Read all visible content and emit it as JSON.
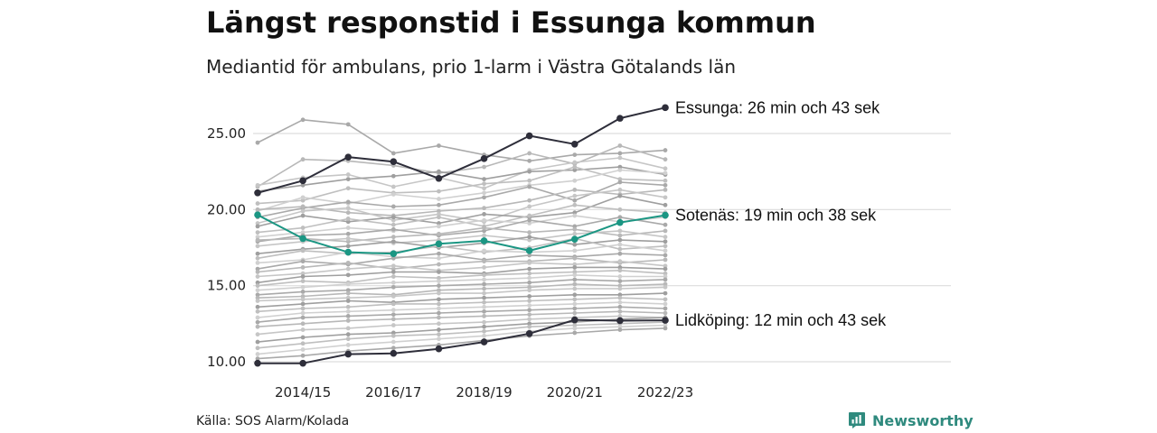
{
  "header": {
    "title": "Längst responstid i Essunga kommun",
    "subtitle": "Mediantid för ambulans, prio 1-larm i Västra Götalands län"
  },
  "footer": {
    "source": "Källa: SOS Alarm/Kolada",
    "brand": "Newsworthy"
  },
  "colors": {
    "highlight_dark": "#2e2e3a",
    "highlight_teal": "#1b9683",
    "background_series": "#b3b3b3",
    "grid": "#dddddd",
    "brand": "#2f8a7e"
  },
  "chart_data": {
    "type": "line",
    "x": [
      "2013/14",
      "2014/15",
      "2015/16",
      "2016/17",
      "2017/18",
      "2018/19",
      "2019/20",
      "2020/21",
      "2021/22",
      "2022/23"
    ],
    "x_tick_labels": [
      "2014/15",
      "2016/17",
      "2018/19",
      "2020/21",
      "2022/23"
    ],
    "y_ticks": [
      "10.00",
      "15.00",
      "20.00",
      "25.00"
    ],
    "ylim": [
      9.5,
      27.2
    ],
    "grid": true,
    "highlighted": [
      {
        "name": "Essunga",
        "label": "Essunga: 26 min och 43 sek",
        "color": "#2e2e3a",
        "values": [
          21.1,
          21.9,
          23.45,
          23.15,
          22.05,
          23.35,
          24.85,
          24.3,
          26.0,
          26.7
        ]
      },
      {
        "name": "Sotenäs",
        "label": "Sotenäs: 19 min och 38 sek",
        "color": "#1b9683",
        "values": [
          19.65,
          18.1,
          17.2,
          17.1,
          17.75,
          17.95,
          17.3,
          18.05,
          19.15,
          19.63
        ]
      },
      {
        "name": "Lidköping",
        "label": "Lidköping: 12 min och 43 sek",
        "color": "#2e2e3a",
        "values": [
          9.9,
          9.9,
          10.5,
          10.55,
          10.85,
          11.3,
          11.85,
          12.75,
          12.7,
          12.72
        ]
      }
    ],
    "background_series": [
      [
        24.4,
        25.9,
        25.6,
        23.7,
        24.2,
        23.6,
        23.2,
        23.6,
        23.7,
        23.9
      ],
      [
        21.5,
        23.3,
        23.2,
        22.9,
        22.4,
        22.8,
        23.7,
        23.0,
        24.2,
        23.3
      ],
      [
        21.6,
        22.1,
        22.3,
        21.5,
        22.1,
        21.4,
        22.6,
        23.1,
        23.4,
        22.7
      ],
      [
        21.2,
        21.6,
        22.0,
        22.2,
        22.5,
        22.0,
        22.5,
        22.6,
        22.8,
        22.3
      ],
      [
        20.4,
        20.6,
        21.4,
        21.1,
        21.2,
        21.7,
        21.9,
        22.8,
        22.0,
        21.9
      ],
      [
        19.9,
        20.8,
        20.4,
        21.0,
        20.7,
        21.1,
        21.6,
        21.9,
        22.6,
        22.4
      ],
      [
        19.5,
        20.1,
        20.5,
        20.2,
        20.3,
        20.8,
        21.5,
        20.6,
        21.8,
        21.6
      ],
      [
        20.0,
        20.2,
        19.8,
        19.6,
        19.9,
        20.1,
        20.6,
        21.3,
        21.0,
        21.3
      ],
      [
        19.1,
        19.9,
        20.1,
        19.3,
        19.7,
        19.2,
        20.2,
        20.9,
        21.3,
        20.8
      ],
      [
        18.9,
        19.6,
        19.2,
        19.5,
        19.1,
        19.7,
        19.5,
        19.8,
        20.9,
        20.3
      ],
      [
        18.5,
        18.8,
        19.4,
        19.0,
        19.5,
        18.9,
        19.6,
        20.3,
        20.0,
        19.8
      ],
      [
        18.2,
        18.5,
        18.8,
        18.6,
        18.9,
        19.3,
        19.1,
        19.6,
        19.2,
        19.5
      ],
      [
        17.9,
        18.3,
        18.4,
        18.7,
        18.3,
        18.6,
        19.3,
        18.9,
        19.5,
        19.0
      ],
      [
        18.0,
        18.1,
        17.9,
        18.2,
        18.4,
        18.8,
        18.5,
        18.7,
        18.3,
        18.6
      ],
      [
        17.6,
        17.9,
        18.1,
        17.8,
        18.0,
        18.3,
        18.0,
        18.4,
        18.6,
        18.2
      ],
      [
        17.1,
        17.4,
        17.6,
        17.9,
        17.5,
        17.8,
        18.2,
        17.7,
        18.0,
        17.9
      ],
      [
        16.8,
        17.3,
        17.1,
        17.2,
        17.6,
        17.2,
        17.5,
        18.1,
        17.4,
        17.6
      ],
      [
        16.5,
        16.7,
        17.2,
        16.9,
        16.8,
        17.3,
        17.2,
        17.3,
        17.7,
        17.3
      ],
      [
        16.1,
        16.6,
        16.4,
        16.8,
        17.1,
        16.7,
        17.0,
        16.9,
        17.1,
        17.0
      ],
      [
        15.9,
        16.2,
        16.5,
        16.1,
        16.4,
        16.6,
        16.6,
        16.8,
        16.5,
        16.7
      ],
      [
        15.6,
        15.8,
        16.1,
        16.3,
        16.0,
        16.2,
        16.5,
        16.4,
        16.6,
        16.3
      ],
      [
        15.2,
        15.6,
        15.7,
        15.9,
        15.9,
        15.8,
        16.1,
        16.2,
        16.2,
        16.1
      ],
      [
        15.0,
        15.3,
        15.2,
        15.6,
        15.5,
        15.7,
        15.8,
        15.9,
        16.0,
        15.8
      ],
      [
        14.7,
        14.9,
        15.1,
        15.2,
        15.3,
        15.4,
        15.5,
        15.7,
        15.6,
        15.6
      ],
      [
        14.4,
        14.6,
        14.7,
        14.9,
        15.0,
        15.1,
        15.2,
        15.4,
        15.3,
        15.4
      ],
      [
        14.2,
        14.3,
        14.5,
        14.4,
        14.7,
        14.8,
        14.9,
        15.1,
        15.0,
        15.1
      ],
      [
        14.0,
        14.1,
        14.2,
        14.3,
        14.5,
        14.5,
        14.7,
        14.8,
        14.8,
        14.9
      ],
      [
        13.6,
        13.8,
        14.0,
        13.9,
        14.1,
        14.2,
        14.3,
        14.4,
        14.4,
        14.5
      ],
      [
        13.3,
        13.5,
        13.6,
        13.8,
        13.8,
        13.9,
        14.0,
        14.1,
        14.2,
        14.1
      ],
      [
        12.9,
        13.2,
        13.3,
        13.4,
        13.5,
        13.6,
        13.7,
        13.8,
        13.9,
        13.8
      ],
      [
        12.6,
        12.9,
        13.0,
        13.1,
        13.2,
        13.3,
        13.4,
        13.5,
        13.6,
        13.5
      ],
      [
        12.3,
        12.5,
        12.7,
        12.8,
        12.9,
        13.0,
        13.1,
        13.2,
        13.3,
        13.2
      ],
      [
        11.8,
        12.1,
        12.2,
        12.4,
        12.5,
        12.6,
        12.8,
        12.9,
        13.0,
        12.9
      ],
      [
        11.3,
        11.6,
        11.8,
        11.9,
        12.1,
        12.3,
        12.5,
        12.6,
        12.8,
        12.9
      ],
      [
        10.9,
        11.2,
        11.5,
        11.7,
        11.8,
        12.0,
        12.3,
        12.4,
        12.5,
        12.6
      ],
      [
        10.5,
        10.8,
        11.1,
        11.3,
        11.5,
        11.7,
        12.0,
        12.2,
        12.3,
        12.4
      ],
      [
        10.2,
        10.4,
        10.7,
        10.9,
        11.1,
        11.4,
        11.7,
        11.9,
        12.1,
        12.2
      ]
    ]
  }
}
